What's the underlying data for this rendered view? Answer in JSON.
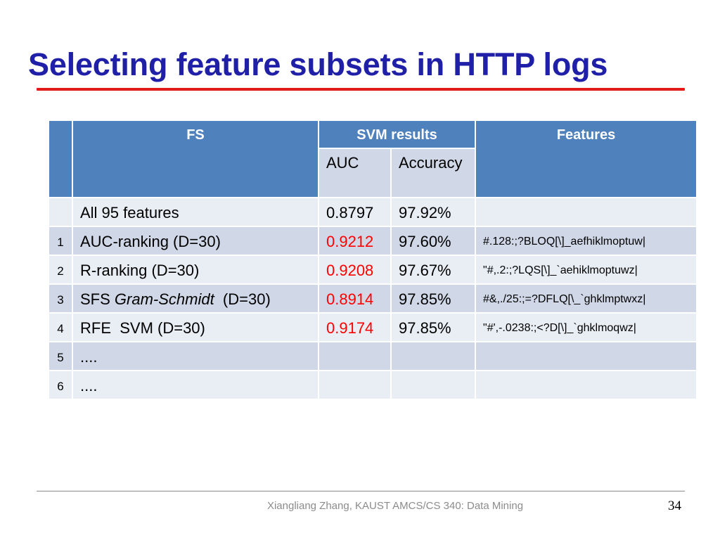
{
  "slide": {
    "title": "Selecting feature subsets in HTTP logs",
    "footer": "Xiangliang Zhang, KAUST AMCS/CS 340: Data Mining",
    "page_number": "34"
  },
  "table": {
    "headers": {
      "fs": "FS",
      "svm_results": "SVM results",
      "auc": "AUC",
      "accuracy": "Accuracy",
      "features": "Features"
    },
    "rows": [
      {
        "num": "",
        "name_plain": "All 95 features",
        "name_prefix": "",
        "name_italic": "",
        "name_suffix": "",
        "auc": "0.8797",
        "auc_highlight": false,
        "accuracy": "97.92%",
        "features": ""
      },
      {
        "num": "1",
        "name_plain": "AUC-ranking (D=30)",
        "name_prefix": "",
        "name_italic": "",
        "name_suffix": "",
        "auc": "0.9212",
        "auc_highlight": true,
        "accuracy": "97.60%",
        "features": "#.128:;?BLOQ[\\]_aefhiklmoptuw|"
      },
      {
        "num": "2",
        "name_plain": "R-ranking (D=30)",
        "name_prefix": "",
        "name_italic": "",
        "name_suffix": "",
        "auc": "0.9208",
        "auc_highlight": true,
        "accuracy": "97.67%",
        "features": "\"#,.2:;?LQS[\\]_`aehiklmoptuwz|"
      },
      {
        "num": "3",
        "name_plain": "",
        "name_prefix": "SFS ",
        "name_italic": "Gram-Schmidt",
        "name_suffix": "  (D=30)",
        "auc": "0.8914",
        "auc_highlight": true,
        "accuracy": "97.85%",
        "features": "#&,./25:;=?DFLQ[\\_`ghklmptwxz|"
      },
      {
        "num": "4",
        "name_plain": "RFE  SVM (D=30)",
        "name_prefix": "",
        "name_italic": "",
        "name_suffix": "",
        "auc": "0.9174",
        "auc_highlight": true,
        "accuracy": "97.85%",
        "features": "\"#',-.0238:;<?D[\\]_`ghklmoqwz|"
      },
      {
        "num": "5",
        "name_plain": "....",
        "name_prefix": "",
        "name_italic": "",
        "name_suffix": "",
        "auc": "",
        "auc_highlight": false,
        "accuracy": "",
        "features": ""
      },
      {
        "num": "6",
        "name_plain": "....",
        "name_prefix": "",
        "name_italic": "",
        "name_suffix": "",
        "auc": "",
        "auc_highlight": false,
        "accuracy": "",
        "features": ""
      }
    ]
  },
  "colors": {
    "title": "#1f1fa8",
    "title_rule": "#e31b1b",
    "header_bg": "#4f81bd",
    "row_light": "#e9edf4",
    "row_dark": "#d0d8e8",
    "highlight_value": "#ff0000"
  }
}
